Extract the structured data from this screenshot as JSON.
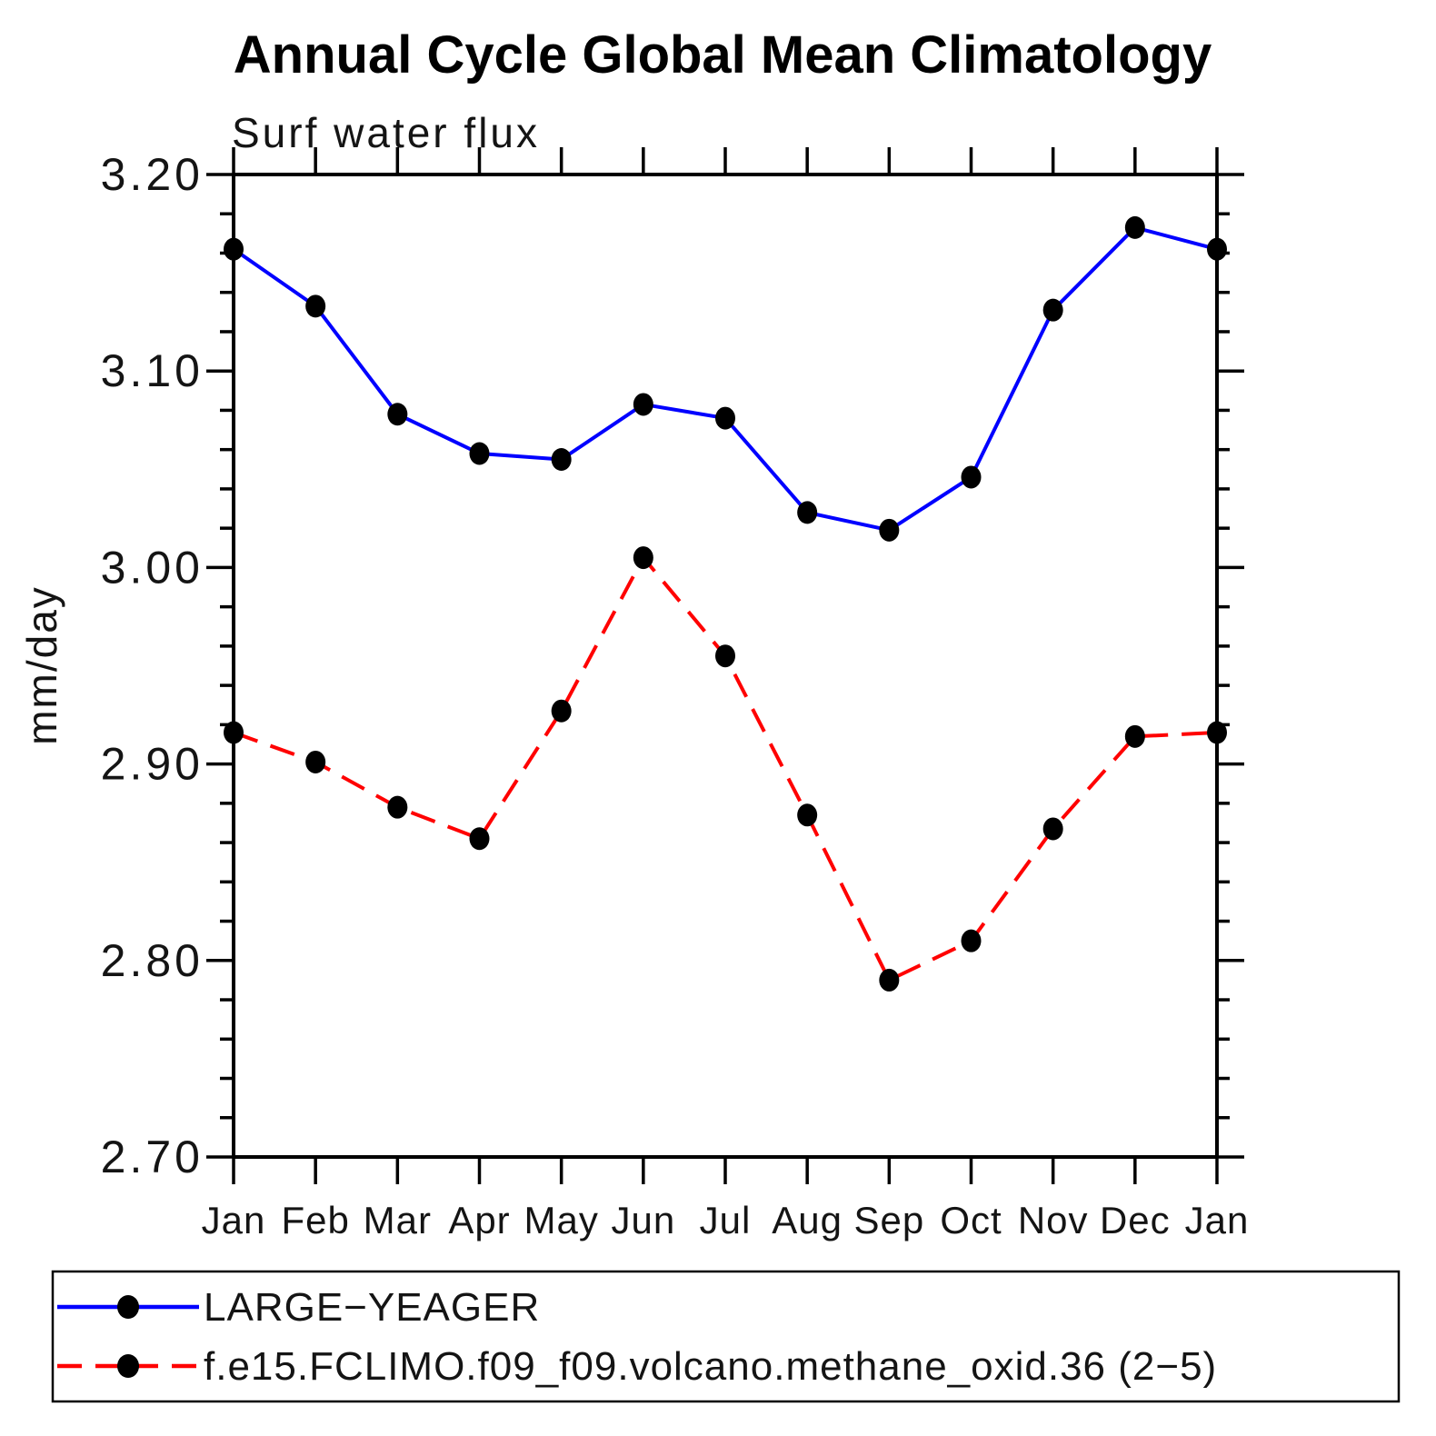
{
  "chart": {
    "title": "Annual Cycle Global Mean Climatology",
    "subtitle": "Surf water flux",
    "ylabel": "mm/day"
  },
  "chart_data": {
    "type": "line",
    "title": "Annual Cycle Global Mean Climatology",
    "subtitle": "Surf water flux",
    "xlabel": "",
    "ylabel": "mm/day",
    "x_categories": [
      "Jan",
      "Feb",
      "Mar",
      "Apr",
      "May",
      "Jun",
      "Jul",
      "Aug",
      "Sep",
      "Oct",
      "Nov",
      "Dec",
      "Jan"
    ],
    "ylim": [
      2.7,
      3.2
    ],
    "ytick_labels": [
      "2.70",
      "2.80",
      "2.90",
      "3.00",
      "3.10",
      "3.20"
    ],
    "ytick_minor_step": 0.02,
    "grid": false,
    "legend_position": "bottom-box",
    "series": [
      {
        "name": "LARGE−YEAGER",
        "color": "#0000ff",
        "line_style": "solid",
        "marker": "filled-circle",
        "marker_color": "#000000",
        "values": [
          3.162,
          3.133,
          3.078,
          3.058,
          3.055,
          3.083,
          3.076,
          3.028,
          3.019,
          3.046,
          3.131,
          3.173,
          3.162
        ]
      },
      {
        "name": "f.e15.FCLIMO.f09_f09.volcano.methane_oxid.36 (2−5)",
        "color": "#ff0000",
        "line_style": "dashed",
        "marker": "filled-circle",
        "marker_color": "#000000",
        "values": [
          2.916,
          2.901,
          2.878,
          2.862,
          2.927,
          3.005,
          2.955,
          2.874,
          2.79,
          2.81,
          2.867,
          2.914,
          2.916
        ]
      }
    ]
  }
}
